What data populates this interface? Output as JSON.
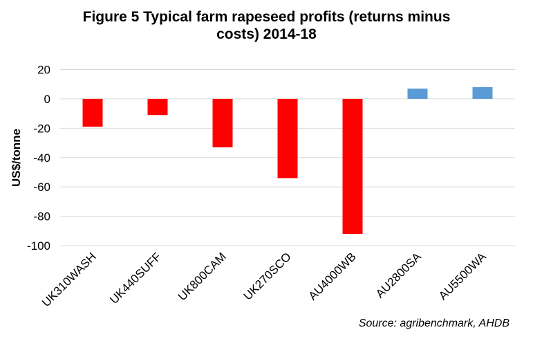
{
  "chart_data": {
    "type": "bar",
    "title_lines": [
      "Figure 5  Typical farm rapeseed profits (returns minus",
      "costs) 2014-18"
    ],
    "title": "Figure 5  Typical farm rapeseed profits (returns minus costs) 2014-18",
    "xlabel": "",
    "ylabel": "US$/tonne",
    "ylim": [
      -100,
      20
    ],
    "yticks": [
      20,
      0,
      -20,
      -40,
      -60,
      -80,
      -100
    ],
    "grid": true,
    "categories": [
      "UK310WASH",
      "UK440SUFF",
      "UK800CAM",
      "UK270SCO",
      "AU4000WB",
      "AU2800SA",
      "AU5500WA"
    ],
    "values": [
      -19,
      -11,
      -33,
      -54,
      -92,
      7,
      8
    ],
    "colors": {
      "negative": "#ff0000",
      "positive": "#5b9bd5",
      "grid": "#d9d9d9"
    },
    "source": "Source: agribenchmark, AHDB"
  }
}
